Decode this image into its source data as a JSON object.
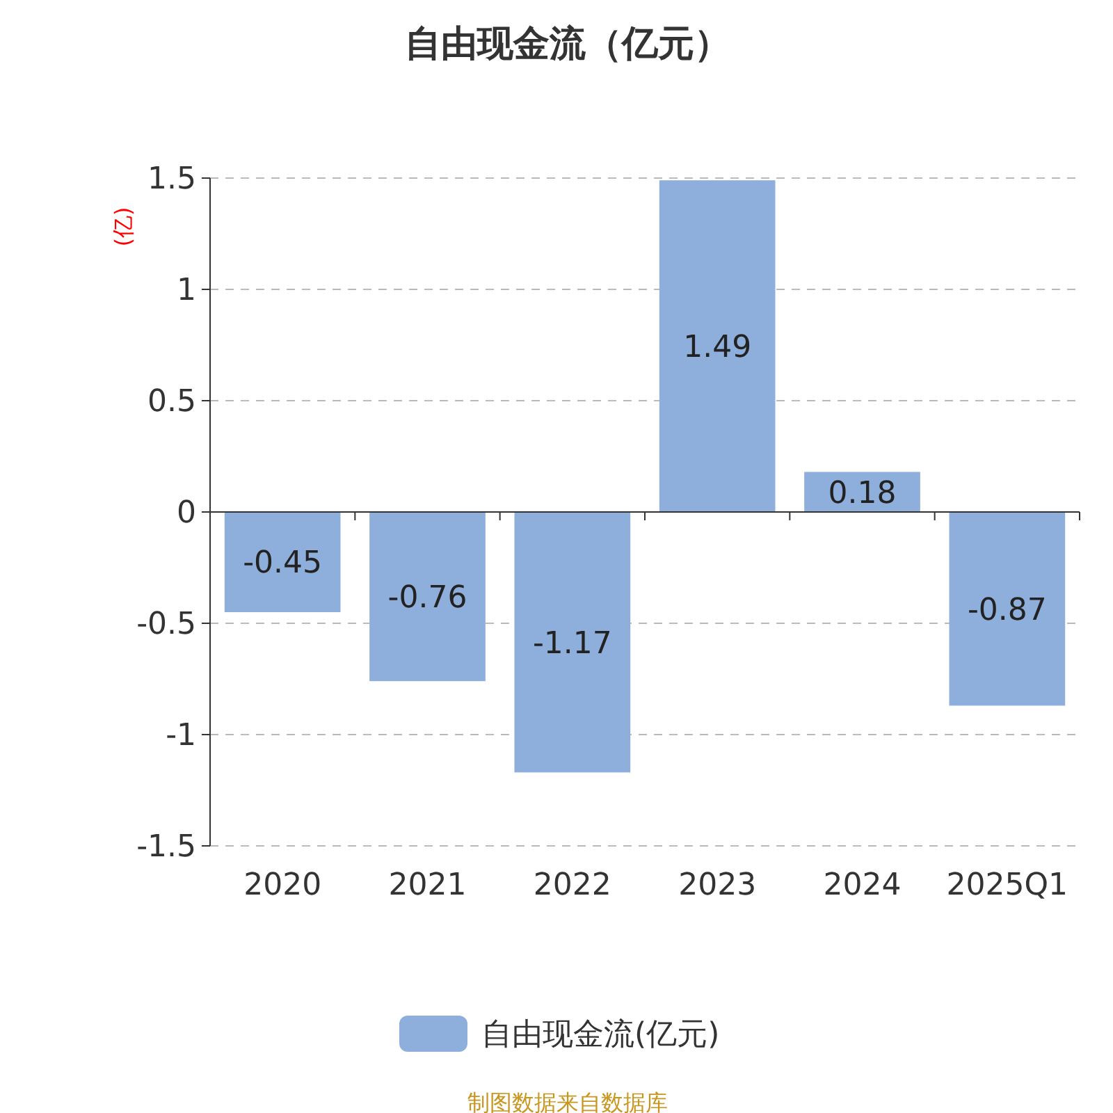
{
  "chart_data": {
    "type": "bar",
    "title": "自由现金流（亿元）",
    "ylabel": "(亿)",
    "categories": [
      "2020",
      "2021",
      "2022",
      "2023",
      "2024",
      "2025Q1"
    ],
    "series": [
      {
        "name": "自由现金流(亿元)",
        "color": "#8eaedb",
        "values": [
          -0.45,
          -0.76,
          -1.17,
          1.49,
          0.18,
          -0.87
        ]
      }
    ],
    "ylim": [
      -1.5,
      1.5
    ],
    "yticks": [
      -1.5,
      -1,
      -0.5,
      0,
      0.5,
      1,
      1.5
    ],
    "grid": "y",
    "legend": "bottom",
    "data_labels": true,
    "annotations": [
      "制图数据来自数据库"
    ]
  }
}
